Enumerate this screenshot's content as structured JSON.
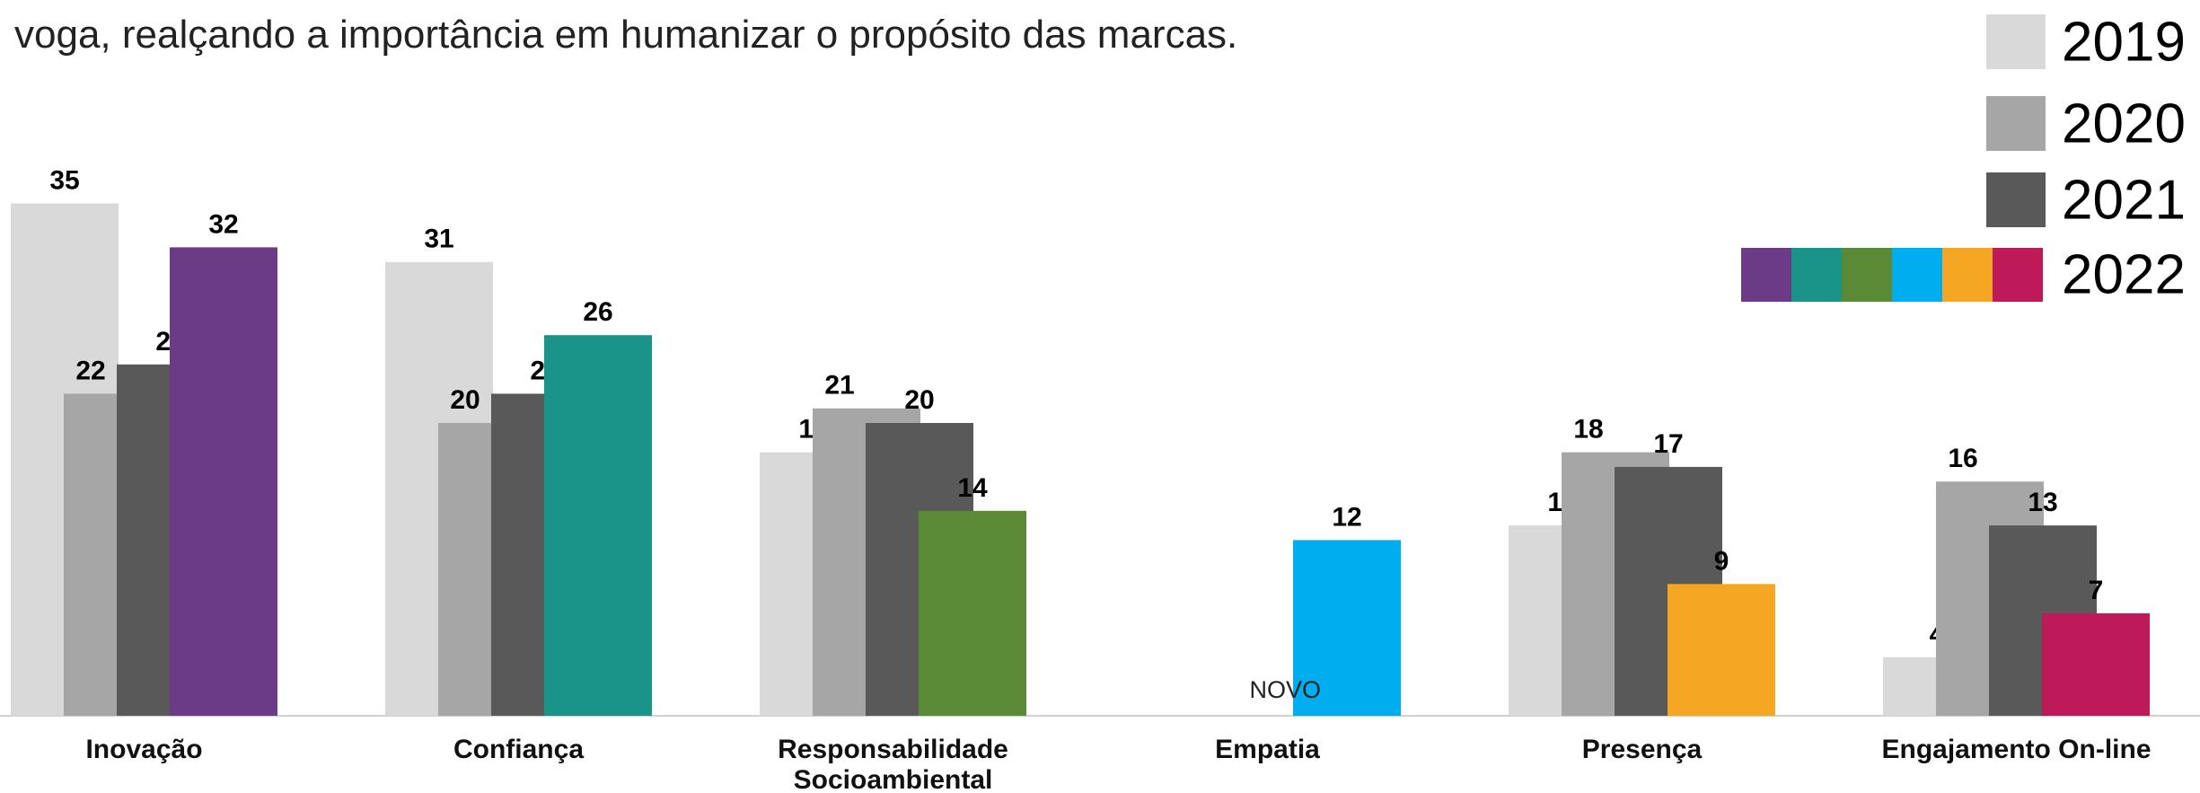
{
  "chart_data": {
    "type": "bar",
    "subtitle": "voga, realçando a importância em humanizar o propósito das marcas.",
    "categories": [
      "Inovação",
      "Confiança",
      "Responsabilidade Socioambiental",
      "Empatia",
      "Presença",
      "Engajamento On-line"
    ],
    "series": [
      {
        "name": "2019",
        "color": "#d9d9d9",
        "values": [
          35,
          31,
          18,
          null,
          13,
          4
        ]
      },
      {
        "name": "2020",
        "color": "#a6a6a6",
        "values": [
          22,
          20,
          21,
          null,
          18,
          16
        ]
      },
      {
        "name": "2021",
        "color": "#595959",
        "values": [
          24,
          22,
          20,
          null,
          17,
          13
        ]
      },
      {
        "name": "2022",
        "colors": [
          "#6c3b87",
          "#1a9488",
          "#5a8a35",
          "#00aeef",
          "#f5a623",
          "#be1a5a"
        ],
        "values": [
          32,
          26,
          14,
          12,
          9,
          7
        ]
      }
    ],
    "annotation": "NOVO",
    "ylim": [
      0,
      40
    ]
  }
}
